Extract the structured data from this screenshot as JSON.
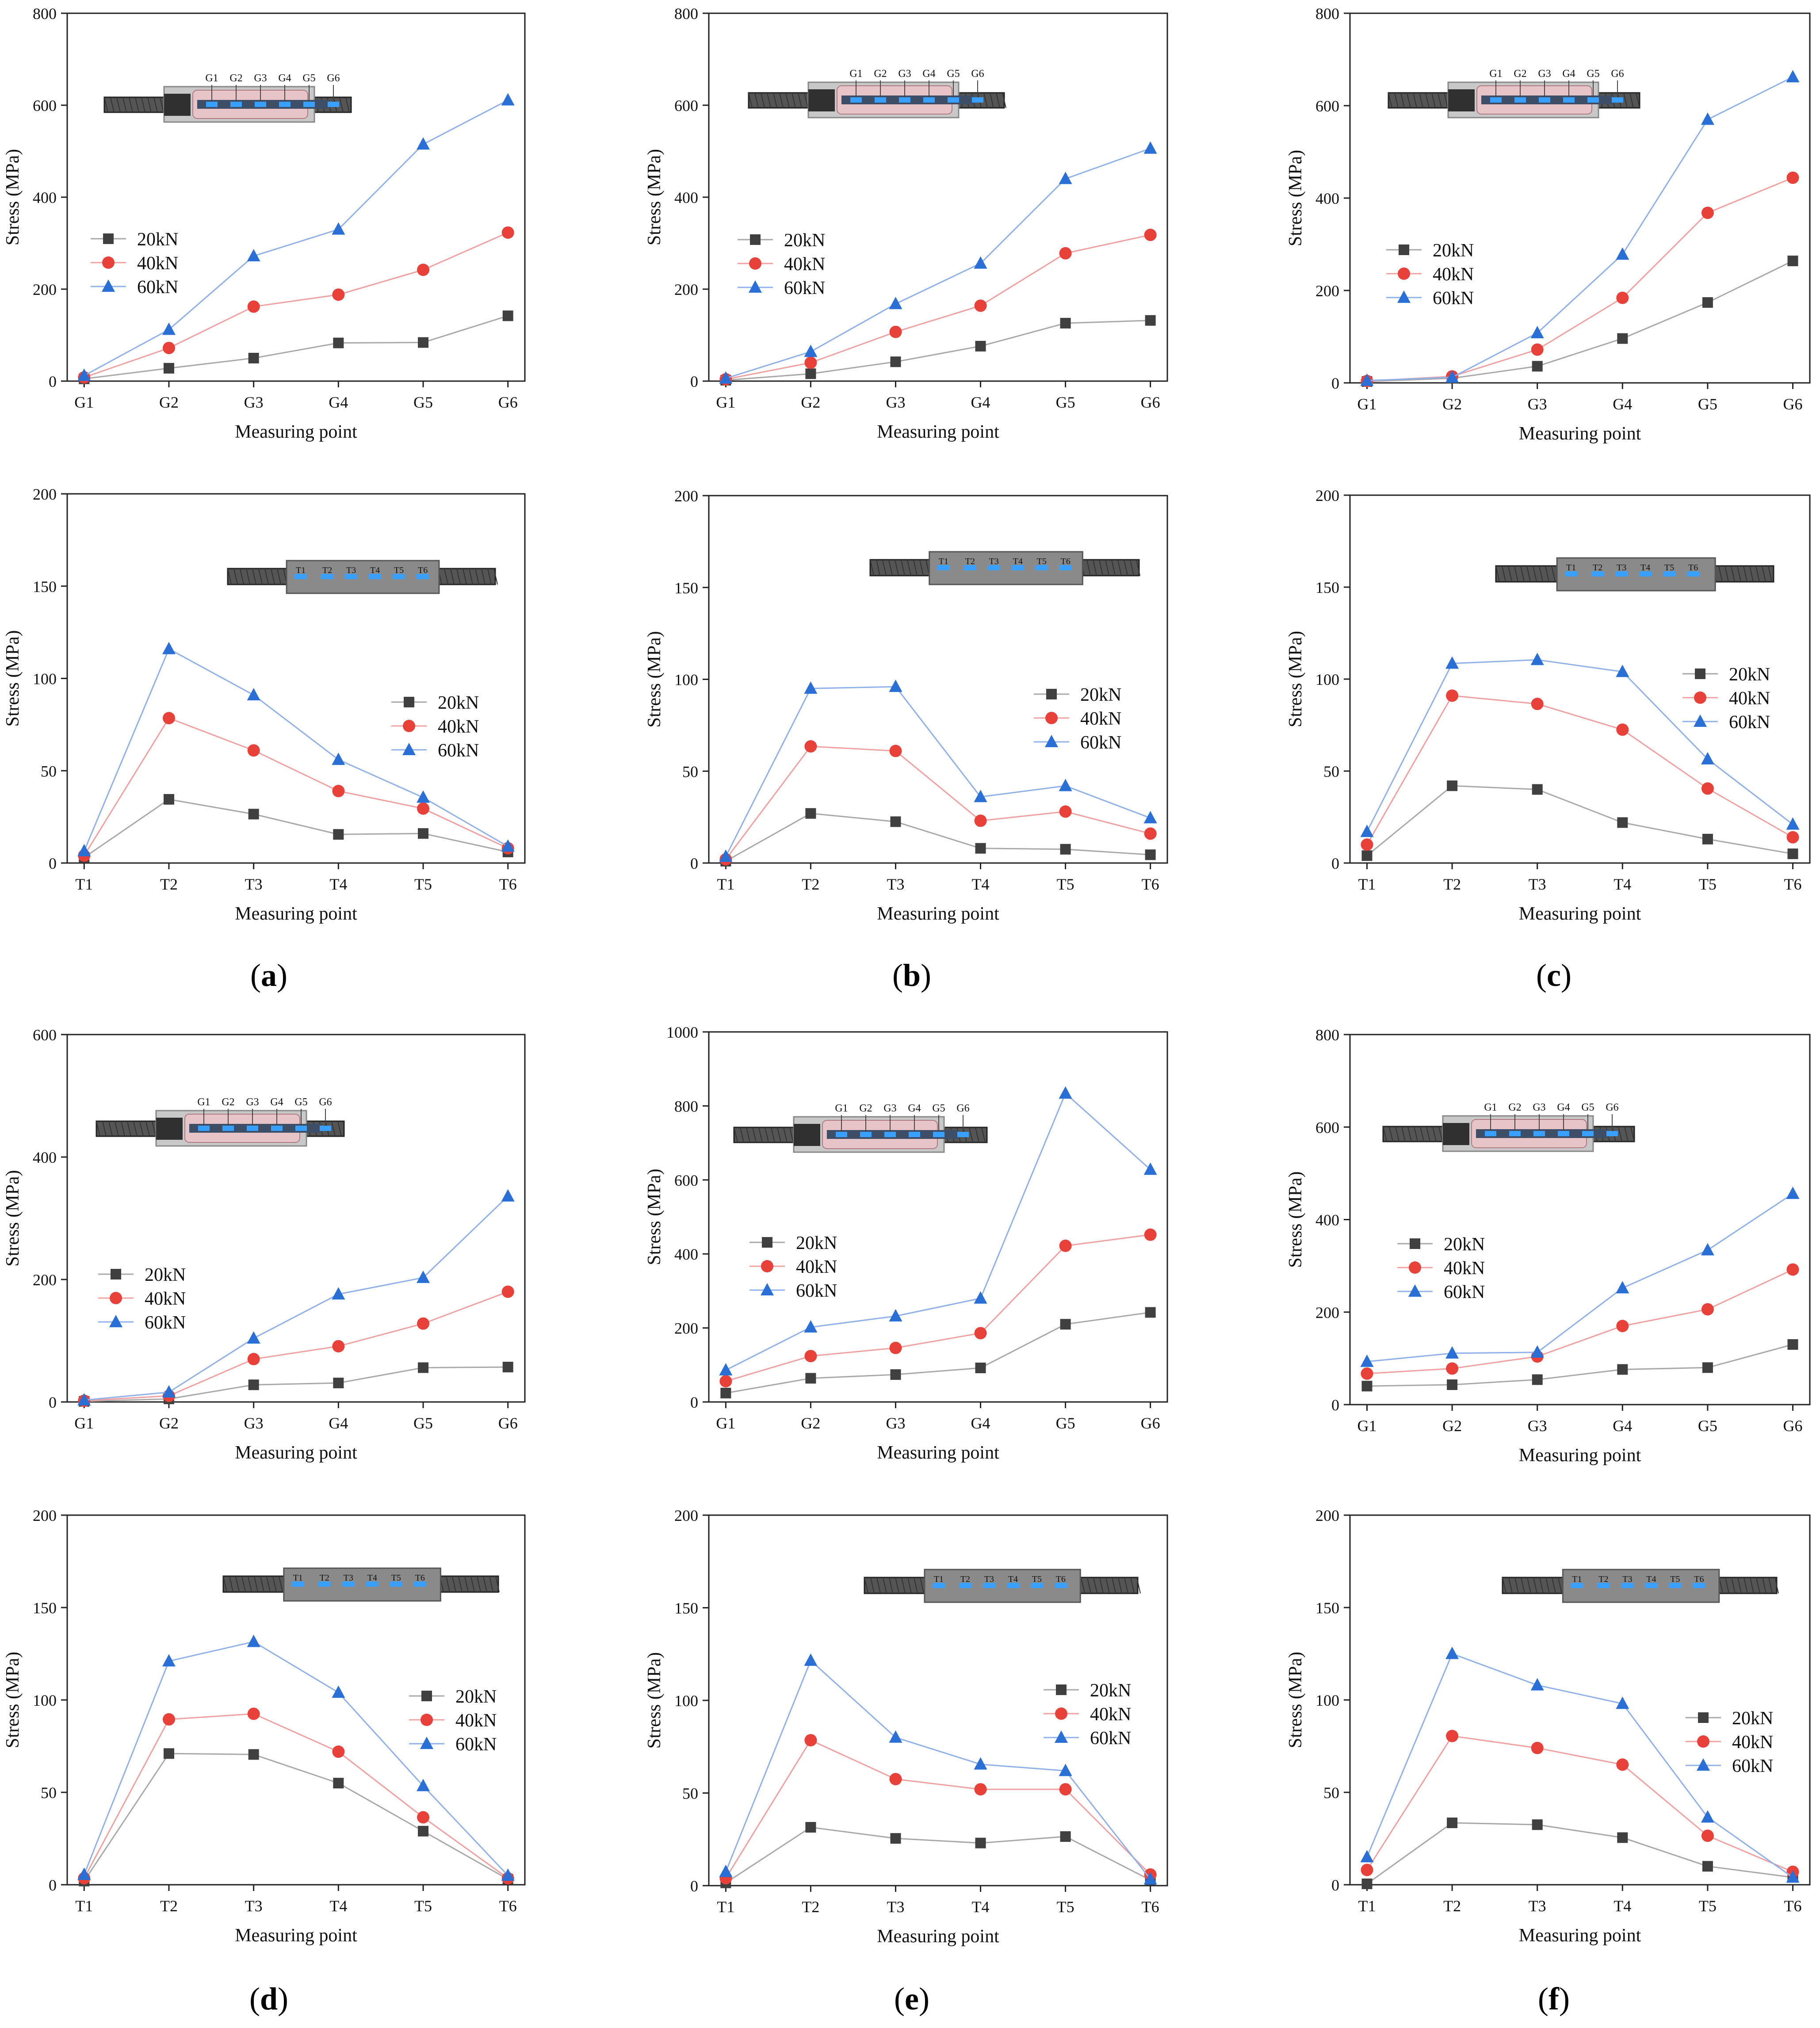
{
  "figure": {
    "panel_labels": [
      {
        "id": "a",
        "text": "a"
      },
      {
        "id": "b",
        "text": "b"
      },
      {
        "id": "c",
        "text": "c"
      },
      {
        "id": "d",
        "text": "d"
      },
      {
        "id": "e",
        "text": "e"
      },
      {
        "id": "f",
        "text": "f"
      }
    ]
  },
  "colors": {
    "s20": "#404040",
    "s40": "#e8413a",
    "s60": "#2a6fd6",
    "line20": "#a8a8a8",
    "line40": "#f0a0a0",
    "line60": "#8fb0e8"
  },
  "chart_data": [
    {
      "id": "a-top",
      "panel": "a",
      "type": "line",
      "xlabel": "Measuring point",
      "ylabel": "Stress (MPa)",
      "categories": [
        "G1",
        "G2",
        "G3",
        "G4",
        "G5",
        "G6"
      ],
      "ylim": [
        0,
        800
      ],
      "yticks": [
        0,
        200,
        400,
        600,
        800
      ],
      "inset": "G",
      "insetLabels": [
        "G1",
        "G2",
        "G3",
        "G4",
        "G5",
        "G6"
      ],
      "legend": "middle-left",
      "series": [
        {
          "name": "20kN",
          "values": [
            5,
            28,
            50,
            83,
            84,
            142
          ]
        },
        {
          "name": "40kN",
          "values": [
            8,
            72,
            162,
            188,
            242,
            323
          ]
        },
        {
          "name": "60kN",
          "values": [
            12,
            112,
            272,
            330,
            515,
            611
          ]
        }
      ]
    },
    {
      "id": "b-top",
      "panel": "b",
      "type": "line",
      "xlabel": "Measuring point",
      "ylabel": "Stress (MPa)",
      "categories": [
        "G1",
        "G2",
        "G3",
        "G4",
        "G5",
        "G6"
      ],
      "ylim": [
        0,
        800
      ],
      "yticks": [
        0,
        200,
        400,
        600,
        800
      ],
      "inset": "G",
      "insetLabels": [
        "G1",
        "G2",
        "G3",
        "G4",
        "G5",
        "G6"
      ],
      "legend": "middle-left",
      "series": [
        {
          "name": "20kN",
          "values": [
            2,
            16,
            42,
            76,
            126,
            132
          ]
        },
        {
          "name": "40kN",
          "values": [
            4,
            40,
            107,
            164,
            278,
            318
          ]
        },
        {
          "name": "60kN",
          "values": [
            6,
            64,
            168,
            256,
            440,
            506
          ]
        }
      ]
    },
    {
      "id": "c-top",
      "panel": "c",
      "type": "line",
      "xlabel": "Measuring point",
      "ylabel": "Stress (MPa)",
      "categories": [
        "G1",
        "G2",
        "G3",
        "G4",
        "G5",
        "G6"
      ],
      "ylim": [
        0,
        800
      ],
      "yticks": [
        0,
        200,
        400,
        600,
        800
      ],
      "inset": "G",
      "insetLabels": [
        "G1",
        "G2",
        "G3",
        "G4",
        "G5",
        "G6"
      ],
      "legend": "middle-left",
      "series": [
        {
          "name": "20kN",
          "values": [
            3,
            10,
            36,
            96,
            174,
            264
          ]
        },
        {
          "name": "40kN",
          "values": [
            4,
            14,
            72,
            184,
            368,
            444
          ]
        },
        {
          "name": "60kN",
          "values": [
            5,
            12,
            108,
            278,
            570,
            662
          ]
        }
      ]
    },
    {
      "id": "a-bottom",
      "panel": "a",
      "type": "line",
      "xlabel": "Measuring point",
      "ylabel": "Stress (MPa)",
      "categories": [
        "T1",
        "T2",
        "T3",
        "T4",
        "T5",
        "T6"
      ],
      "ylim": [
        0,
        200
      ],
      "yticks": [
        0,
        50,
        100,
        150,
        200
      ],
      "inset": "T",
      "insetLabels": [
        "T1",
        "T2",
        "T3",
        "T4",
        "T5",
        "T6"
      ],
      "legend": "middle-right",
      "series": [
        {
          "name": "20kN",
          "values": [
            3,
            34.5,
            26.5,
            15.5,
            16,
            6
          ]
        },
        {
          "name": "40kN",
          "values": [
            4,
            78.5,
            61,
            39,
            29.5,
            8
          ]
        },
        {
          "name": "60kN",
          "values": [
            6.5,
            116,
            91,
            56,
            35.5,
            9
          ]
        }
      ]
    },
    {
      "id": "b-bottom",
      "panel": "b",
      "type": "line",
      "xlabel": "Measuring point",
      "ylabel": "Stress (MPa)",
      "categories": [
        "T1",
        "T2",
        "T3",
        "T4",
        "T5",
        "T6"
      ],
      "ylim": [
        0,
        200
      ],
      "yticks": [
        0,
        50,
        100,
        150,
        200
      ],
      "inset": "T",
      "insetLabels": [
        "T1",
        "T2",
        "T3",
        "T4",
        "T5",
        "T6"
      ],
      "legend": "middle-right",
      "series": [
        {
          "name": "20kN",
          "values": [
            1,
            27,
            22.5,
            8,
            7.5,
            4.5
          ]
        },
        {
          "name": "40kN",
          "values": [
            2,
            63.5,
            61,
            23,
            28,
            16
          ]
        },
        {
          "name": "60kN",
          "values": [
            3.5,
            95,
            96,
            36,
            42,
            24.5
          ]
        }
      ]
    },
    {
      "id": "c-bottom",
      "panel": "c",
      "type": "line",
      "xlabel": "Measuring point",
      "ylabel": "Stress (MPa)",
      "categories": [
        "T1",
        "T2",
        "T3",
        "T4",
        "T5",
        "T6"
      ],
      "ylim": [
        0,
        200
      ],
      "yticks": [
        0,
        50,
        100,
        150,
        200
      ],
      "inset": "T",
      "insetLabels": [
        "T1",
        "T2",
        "T3",
        "T4",
        "T5",
        "T6"
      ],
      "legend": "middle-right",
      "series": [
        {
          "name": "20kN",
          "values": [
            4,
            42,
            40,
            22,
            13,
            5
          ]
        },
        {
          "name": "40kN",
          "values": [
            10,
            91,
            86.5,
            72.5,
            40.5,
            14
          ]
        },
        {
          "name": "60kN",
          "values": [
            17,
            108.5,
            110.5,
            104,
            56.5,
            21
          ]
        }
      ]
    },
    {
      "id": "d-top",
      "panel": "d",
      "type": "line",
      "xlabel": "Measuring point",
      "ylabel": "Stress (MPa)",
      "categories": [
        "G1",
        "G2",
        "G3",
        "G4",
        "G5",
        "G6"
      ],
      "ylim": [
        0,
        600
      ],
      "yticks": [
        0,
        200,
        400,
        600
      ],
      "inset": "G",
      "insetLabels": [
        "G1",
        "G2",
        "G3",
        "G4",
        "G5",
        "G6"
      ],
      "legend": "middle-left",
      "series": [
        {
          "name": "20kN",
          "values": [
            1,
            5,
            28,
            31,
            56,
            57
          ]
        },
        {
          "name": "40kN",
          "values": [
            2,
            10,
            70,
            91,
            128,
            180
          ]
        },
        {
          "name": "60kN",
          "values": [
            3,
            16,
            104,
            176,
            203,
            336
          ]
        }
      ]
    },
    {
      "id": "e-top",
      "panel": "e",
      "type": "line",
      "xlabel": "Measuring point",
      "ylabel": "Stress (MPa)",
      "categories": [
        "G1",
        "G2",
        "G3",
        "G4",
        "G5",
        "G6"
      ],
      "ylim": [
        0,
        1000
      ],
      "yticks": [
        0,
        200,
        400,
        600,
        800,
        1000
      ],
      "inset": "G",
      "insetLabels": [
        "G1",
        "G2",
        "G3",
        "G4",
        "G5",
        "G6"
      ],
      "legend": "middle-left",
      "series": [
        {
          "name": "20kN",
          "values": [
            24,
            64,
            74,
            92,
            210,
            242
          ]
        },
        {
          "name": "40kN",
          "values": [
            56,
            124,
            146,
            186,
            422,
            452
          ]
        },
        {
          "name": "60kN",
          "values": [
            86,
            202,
            232,
            280,
            834,
            628
          ]
        }
      ]
    },
    {
      "id": "f-top",
      "panel": "f",
      "type": "line",
      "xlabel": "Measuring point",
      "ylabel": "Stress (MPa)",
      "categories": [
        "G1",
        "G2",
        "G3",
        "G4",
        "G5",
        "G6"
      ],
      "ylim": [
        0,
        800
      ],
      "yticks": [
        0,
        200,
        400,
        600,
        800
      ],
      "inset": "G",
      "insetLabels": [
        "G1",
        "G2",
        "G3",
        "G4",
        "G5",
        "G6"
      ],
      "legend": "middle-left",
      "series": [
        {
          "name": "20kN",
          "values": [
            40,
            43,
            54,
            76,
            80,
            130
          ]
        },
        {
          "name": "40kN",
          "values": [
            67,
            78,
            104,
            170,
            206,
            292
          ]
        },
        {
          "name": "60kN",
          "values": [
            93,
            111,
            113,
            252,
            334,
            456
          ]
        }
      ]
    },
    {
      "id": "d-bottom",
      "panel": "d",
      "type": "line",
      "xlabel": "Measuring point",
      "ylabel": "Stress (MPa)",
      "categories": [
        "T1",
        "T2",
        "T3",
        "T4",
        "T5",
        "T6"
      ],
      "ylim": [
        0,
        200
      ],
      "yticks": [
        0,
        50,
        100,
        150,
        200
      ],
      "inset": "T",
      "insetLabels": [
        "T1",
        "T2",
        "T3",
        "T4",
        "T5",
        "T6"
      ],
      "legend": "middle-right",
      "series": [
        {
          "name": "20kN",
          "values": [
            2,
            71,
            70.5,
            55,
            29,
            3
          ]
        },
        {
          "name": "40kN",
          "values": [
            3.5,
            89.5,
            92.5,
            72,
            36.5,
            3.5
          ]
        },
        {
          "name": "60kN",
          "values": [
            5.5,
            121,
            131.5,
            104,
            53.5,
            5
          ]
        }
      ]
    },
    {
      "id": "e-bottom",
      "panel": "e",
      "type": "line",
      "xlabel": "Measuring point",
      "ylabel": "Stress (MPa)",
      "categories": [
        "T1",
        "T2",
        "T3",
        "T4",
        "T5",
        "T6"
      ],
      "ylim": [
        0,
        200
      ],
      "yticks": [
        0,
        50,
        100,
        150,
        200
      ],
      "inset": "T",
      "insetLabels": [
        "T1",
        "T2",
        "T3",
        "T4",
        "T5",
        "T6"
      ],
      "legend": "middle-right",
      "series": [
        {
          "name": "20kN",
          "values": [
            1.5,
            31.5,
            25.5,
            23,
            26.5,
            3
          ]
        },
        {
          "name": "40kN",
          "values": [
            4,
            78.5,
            57.5,
            52,
            52,
            6
          ]
        },
        {
          "name": "60kN",
          "values": [
            7.5,
            121.5,
            80,
            65.5,
            62,
            3.5
          ]
        }
      ]
    },
    {
      "id": "f-bottom",
      "panel": "f",
      "type": "line",
      "xlabel": "Measuring point",
      "ylabel": "Stress (MPa)",
      "categories": [
        "T1",
        "T2",
        "T3",
        "T4",
        "T5",
        "T6"
      ],
      "ylim": [
        0,
        200
      ],
      "yticks": [
        0,
        50,
        100,
        150,
        200
      ],
      "inset": "T",
      "insetLabels": [
        "T1",
        "T2",
        "T3",
        "T4",
        "T5",
        "T6"
      ],
      "legend": "middle-right",
      "series": [
        {
          "name": "20kN",
          "values": [
            0.5,
            33.5,
            32.5,
            25.5,
            10,
            4
          ]
        },
        {
          "name": "40kN",
          "values": [
            8,
            80.5,
            74,
            65,
            26.5,
            7
          ]
        },
        {
          "name": "60kN",
          "values": [
            15,
            125,
            108,
            98,
            36.5,
            4
          ]
        }
      ]
    }
  ]
}
